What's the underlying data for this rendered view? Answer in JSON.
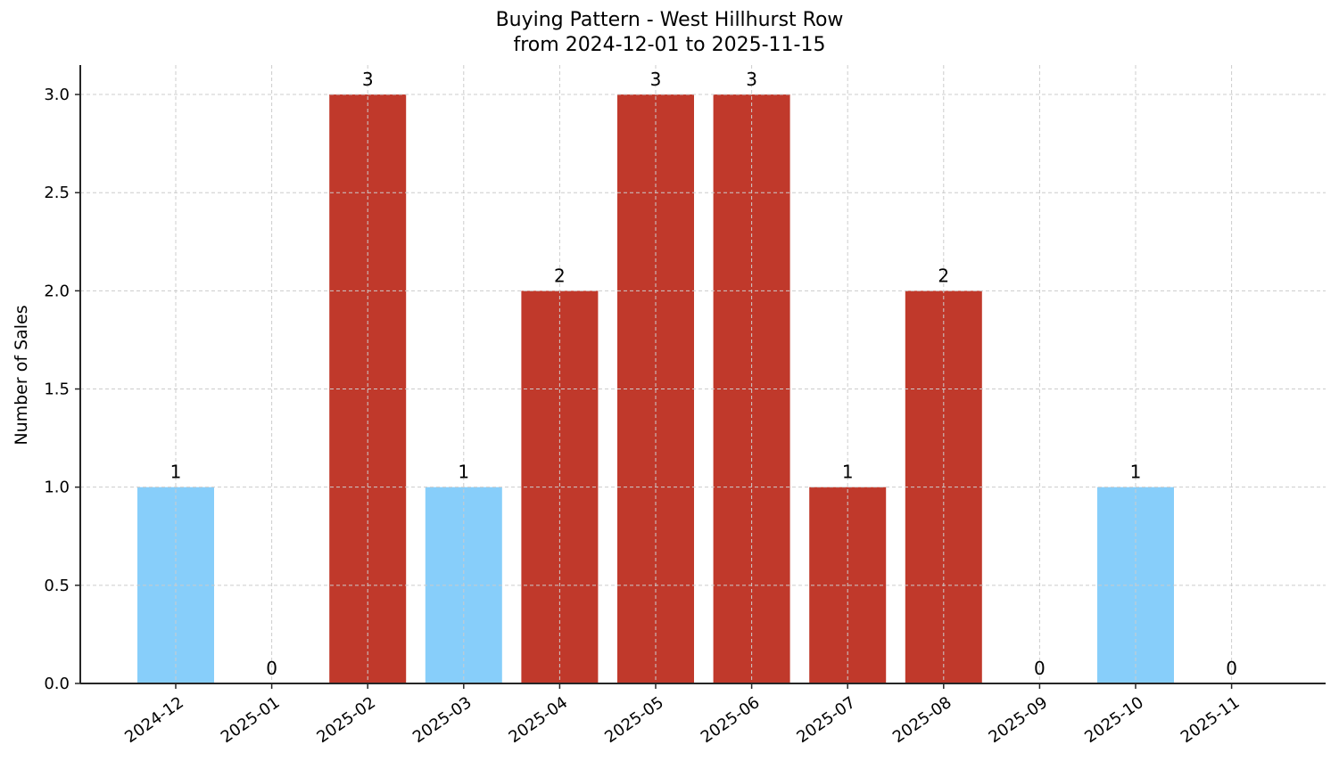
{
  "chart_data": {
    "type": "bar",
    "title": "Buying Pattern - West Hillhurst Row",
    "subtitle": "from 2024-12-01 to 2025-11-15",
    "xlabel": "",
    "ylabel": "Number of Sales",
    "categories": [
      "2024-12",
      "2025-01",
      "2025-02",
      "2025-03",
      "2025-04",
      "2025-05",
      "2025-06",
      "2025-07",
      "2025-08",
      "2025-09",
      "2025-10",
      "2025-11"
    ],
    "values": [
      1,
      0,
      3,
      1,
      2,
      3,
      3,
      1,
      2,
      0,
      1,
      0
    ],
    "bar_colors": [
      "#87cefa",
      "#87cefa",
      "#c0392b",
      "#87cefa",
      "#c0392b",
      "#c0392b",
      "#c0392b",
      "#c0392b",
      "#c0392b",
      "#87cefa",
      "#87cefa",
      "#87cefa"
    ],
    "data_labels": [
      "1",
      "0",
      "3",
      "1",
      "2",
      "3",
      "3",
      "1",
      "2",
      "0",
      "1",
      "0"
    ],
    "ylim": [
      0,
      3.15
    ],
    "yticks": [
      0.0,
      0.5,
      1.0,
      1.5,
      2.0,
      2.5,
      3.0
    ],
    "ytick_labels": [
      "0.0",
      "0.5",
      "1.0",
      "1.5",
      "2.0",
      "2.5",
      "3.0"
    ],
    "grid": true,
    "legend": null,
    "colors": {
      "high": "#c0392b",
      "low": "#87cefa",
      "grid": "#cccccc",
      "axis": "#262626"
    }
  }
}
